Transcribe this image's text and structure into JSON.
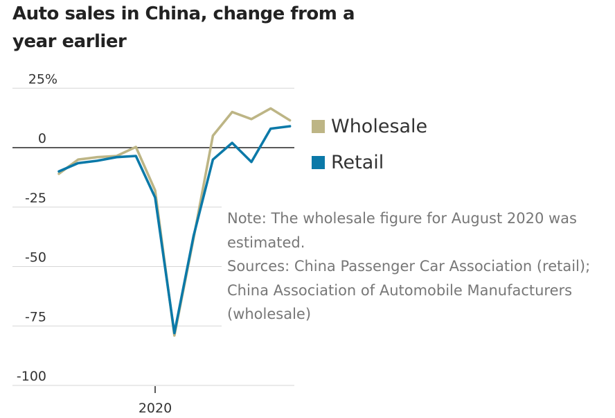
{
  "title": "Auto sales in China, change from a year earlier",
  "chart_data": {
    "type": "line",
    "title": "Auto sales in China, change from a year earlier",
    "xlabel": "",
    "ylabel": "",
    "x_tick_labels": [
      "2020"
    ],
    "y_ticks": [
      {
        "value": 25,
        "label": "25%"
      },
      {
        "value": 0,
        "label": "0"
      },
      {
        "value": -25,
        "label": "-25"
      },
      {
        "value": -50,
        "label": "-50"
      },
      {
        "value": -75,
        "label": "-75"
      },
      {
        "value": -100,
        "label": "-100"
      }
    ],
    "ylim": [
      -100,
      25
    ],
    "grid": true,
    "legend_position": "right",
    "series": [
      {
        "name": "Wholesale",
        "color": "#bdb585",
        "values": [
          -11,
          -5,
          -4,
          -3.5,
          0.3,
          -18,
          -79,
          -38,
          5,
          15,
          12,
          16.5,
          11.5
        ]
      },
      {
        "name": "Retail",
        "color": "#0b79a8",
        "values": [
          -10,
          -6.5,
          -5.5,
          -4,
          -3.5,
          -21,
          -78,
          -37,
          -5,
          2,
          -6,
          8,
          9
        ]
      }
    ]
  },
  "notes": [
    "Note: The wholesale figure for August 2020 was estimated.",
    "Sources: China Passenger Car Association (retail); China Association of Automobile Manufacturers (wholesale)"
  ]
}
